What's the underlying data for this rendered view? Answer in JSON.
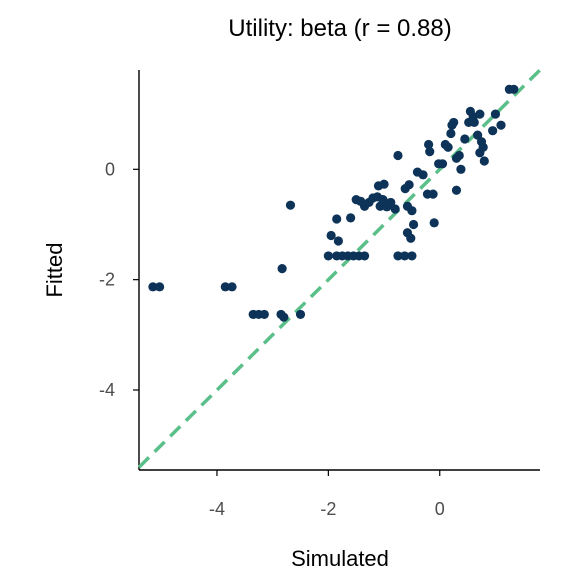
{
  "chart_data": {
    "type": "scatter",
    "title": "Utility: beta (r = 0.88)",
    "xlabel": "Simulated",
    "ylabel": "Fitted",
    "xlim": [
      -5.4,
      1.8
    ],
    "ylim": [
      -5.45,
      1.8
    ],
    "xticks": [
      -4,
      -2,
      0
    ],
    "yticks": [
      -4,
      -2,
      0
    ],
    "xtick_labels": [
      "-4",
      "-2",
      "0"
    ],
    "ytick_labels": [
      "-4",
      "-2",
      "0"
    ],
    "grid": false,
    "legend": "none",
    "reference_line": {
      "type": "identity",
      "style": "dashed",
      "color": "#5bbf8a"
    },
    "point_color": "#0d3358",
    "points": [
      [
        -5.15,
        -2.13
      ],
      [
        -5.03,
        -2.13
      ],
      [
        -3.85,
        -2.13
      ],
      [
        -3.73,
        -2.13
      ],
      [
        -3.35,
        -2.63
      ],
      [
        -3.25,
        -2.63
      ],
      [
        -3.15,
        -2.63
      ],
      [
        -2.85,
        -2.63
      ],
      [
        -2.8,
        -2.68
      ],
      [
        -2.5,
        -2.63
      ],
      [
        -2.83,
        -1.8
      ],
      [
        -2.68,
        -0.65
      ],
      [
        -2.0,
        -1.57
      ],
      [
        -1.85,
        -1.57
      ],
      [
        -1.75,
        -1.57
      ],
      [
        -1.65,
        -1.57
      ],
      [
        -1.55,
        -1.57
      ],
      [
        -1.45,
        -1.57
      ],
      [
        -1.35,
        -1.57
      ],
      [
        -1.95,
        -1.2
      ],
      [
        -1.82,
        -1.3
      ],
      [
        -1.85,
        -0.9
      ],
      [
        -1.6,
        -0.88
      ],
      [
        -1.5,
        -0.55
      ],
      [
        -1.42,
        -0.58
      ],
      [
        -1.35,
        -0.67
      ],
      [
        -1.27,
        -0.6
      ],
      [
        -1.2,
        -0.52
      ],
      [
        -1.12,
        -0.5
      ],
      [
        -1.07,
        -0.67
      ],
      [
        -1.02,
        -0.55
      ],
      [
        -0.95,
        -0.68
      ],
      [
        -0.88,
        -0.6
      ],
      [
        -0.8,
        -0.72
      ],
      [
        -1.1,
        -0.3
      ],
      [
        -1.0,
        -0.27
      ],
      [
        -0.75,
        0.25
      ],
      [
        -0.62,
        -0.35
      ],
      [
        -0.55,
        -0.28
      ],
      [
        -0.58,
        -0.67
      ],
      [
        -0.5,
        -0.75
      ],
      [
        -0.47,
        -1.0
      ],
      [
        -0.58,
        -1.15
      ],
      [
        -0.52,
        -1.25
      ],
      [
        -0.75,
        -1.57
      ],
      [
        -0.63,
        -1.57
      ],
      [
        -0.5,
        -1.57
      ],
      [
        -0.4,
        -0.05
      ],
      [
        -0.3,
        -0.1
      ],
      [
        -0.22,
        -0.45
      ],
      [
        -0.12,
        -0.45
      ],
      [
        -0.2,
        0.45
      ],
      [
        -0.18,
        0.32
      ],
      [
        -0.1,
        -0.97
      ],
      [
        -0.02,
        0.1
      ],
      [
        0.05,
        0.1
      ],
      [
        0.1,
        0.45
      ],
      [
        0.15,
        0.4
      ],
      [
        0.2,
        0.65
      ],
      [
        0.22,
        0.8
      ],
      [
        0.25,
        0.85
      ],
      [
        0.3,
        0.2
      ],
      [
        0.35,
        0.25
      ],
      [
        0.3,
        -0.38
      ],
      [
        0.38,
        0.0
      ],
      [
        0.45,
        0.55
      ],
      [
        0.52,
        0.85
      ],
      [
        0.55,
        1.05
      ],
      [
        0.6,
        0.95
      ],
      [
        0.62,
        0.85
      ],
      [
        0.68,
        0.62
      ],
      [
        0.72,
        0.3
      ],
      [
        0.75,
        0.5
      ],
      [
        0.78,
        0.4
      ],
      [
        0.8,
        0.15
      ],
      [
        0.72,
        1.0
      ],
      [
        0.95,
        0.7
      ],
      [
        1.0,
        1.0
      ],
      [
        1.1,
        0.8
      ],
      [
        1.25,
        1.45
      ],
      [
        1.33,
        1.45
      ]
    ]
  }
}
